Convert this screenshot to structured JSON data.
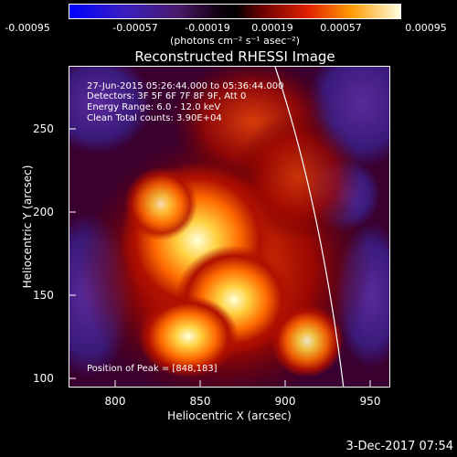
{
  "colorbar": {
    "ticks": [
      "-0.00095",
      "-0.00057",
      "-0.00019",
      "0.00019",
      "0.00057",
      "0.00095"
    ],
    "unit": "(photons cm⁻² s⁻¹ asec⁻²)"
  },
  "title": "Reconstructed RHESSI Image",
  "info": {
    "time_range": "27-Jun-2015 05:26:44.000 to 05:36:44.000",
    "detectors": "Detectors: 3F 5F 6F 7F 8F 9F, Att 0",
    "energy": "Energy Range: 6.0 - 12.0 keV",
    "clean": "Clean     Total counts: 3.90E+04",
    "peak": "Position of Peak = [848,183]"
  },
  "axes": {
    "xlabel": "Heliocentric X (arcsec)",
    "ylabel": "Heliocentric Y (arcsec)",
    "xticks": [
      "800",
      "850",
      "900",
      "950"
    ],
    "yticks": [
      "250",
      "200",
      "150",
      "100"
    ]
  },
  "date_stamp": "3-Dec-2017 07:54"
}
